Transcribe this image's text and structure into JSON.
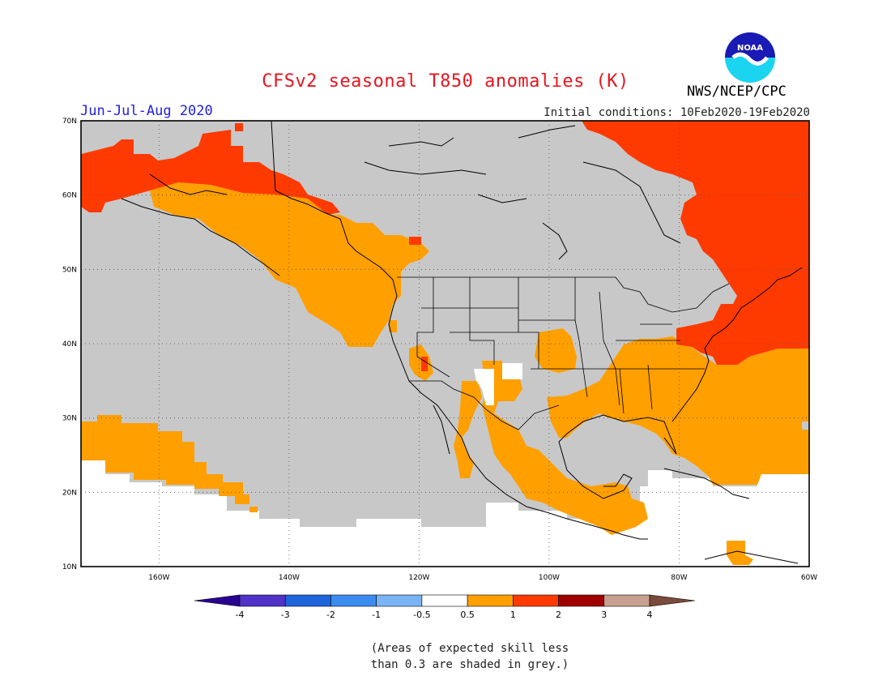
{
  "header": {
    "title": "CFSv2 seasonal T850 anomalies (K)",
    "period": "Jun-Jul-Aug 2020",
    "initial_conditions": "Initial conditions: 10Feb2020-19Feb2020",
    "organization": "NWS/NCEP/CPC",
    "logo_text": "NOAA"
  },
  "map": {
    "lat_labels": [
      "70N",
      "60N",
      "50N",
      "40N",
      "30N",
      "20N",
      "10N"
    ],
    "lon_labels": [
      "160W",
      "140W",
      "120W",
      "100W",
      "80W",
      "60W"
    ],
    "colors": {
      "grey_low_skill": "#c8c8c8",
      "anom_0_5_to_1": "#ff9f00",
      "anom_1_to_2": "#ff3a00",
      "anom_2_to_3": "#a00000",
      "land_outline": "#000000"
    }
  },
  "colorbar": {
    "tick_labels": [
      "-4",
      "-3",
      "-2",
      "-1",
      "-0.5",
      "0.5",
      "1",
      "2",
      "3",
      "4"
    ],
    "colors": [
      "#2a0090",
      "#5032c8",
      "#1e64dc",
      "#3c8cf0",
      "#7ab4f5",
      "#ffffff",
      "#ff9f00",
      "#ff3a00",
      "#a00000",
      "#c8a090",
      "#7a4a3a"
    ]
  },
  "footnote": {
    "line1": "(Areas of expected skill less",
    "line2": "than 0.3 are shaded in grey.)"
  }
}
